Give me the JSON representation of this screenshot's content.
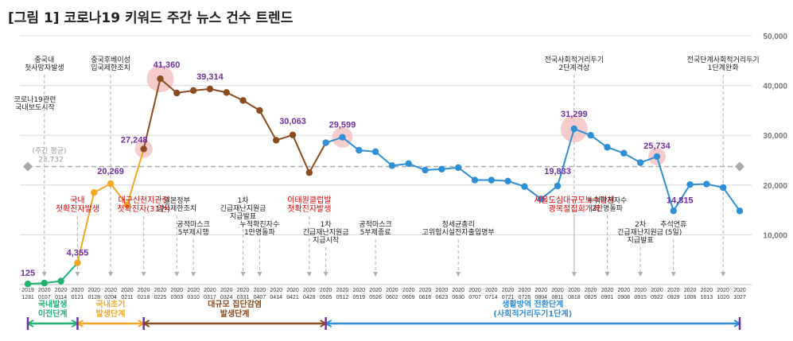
{
  "chart_data": {
    "type": "line",
    "title": "[그림 1] 코로나19 키워드 주간 뉴스 건수 트렌드",
    "ylim": [
      0,
      50000
    ],
    "yticks": [
      "10,000",
      "20,000",
      "30,000",
      "40,000",
      "50,000"
    ],
    "ytick_values": [
      10000,
      20000,
      30000,
      40000,
      50000
    ],
    "grid": true,
    "x_year": [
      "2019",
      "2020",
      "2020",
      "2020",
      "2020",
      "2020",
      "2020",
      "2020",
      "2020",
      "2020",
      "2020",
      "2020",
      "2020",
      "2020",
      "2020",
      "2020",
      "2020",
      "2020",
      "2020",
      "2020",
      "2020",
      "2020",
      "2020",
      "2020",
      "2020",
      "2020",
      "2020",
      "2020",
      "2020",
      "2020",
      "2020",
      "2020",
      "2020",
      "2020",
      "2020",
      "2020",
      "2020",
      "2020",
      "2020",
      "2020",
      "2020",
      "2020",
      "2020",
      "2020",
      "2020"
    ],
    "x": [
      "1231",
      "0107",
      "0114",
      "0121",
      "0128",
      "0204",
      "0211",
      "0218",
      "0225",
      "0303",
      "0310",
      "0317",
      "0324",
      "0331",
      "0407",
      "0414",
      "0421",
      "0428",
      "0505",
      "0512",
      "0519",
      "0526",
      "0602",
      "0609",
      "0616",
      "0623",
      "0630",
      "0707",
      "0714",
      "0721",
      "0728",
      "0804",
      "0811",
      "0818",
      "0825",
      "0901",
      "0908",
      "0915",
      "0922",
      "0929",
      "1006",
      "1013",
      "1020",
      "1027"
    ],
    "values": [
      125,
      300,
      700,
      4355,
      18500,
      20269,
      16000,
      27248,
      41360,
      38500,
      39000,
      39314,
      38600,
      37000,
      35000,
      29000,
      30063,
      22500,
      28500,
      29599,
      27000,
      26700,
      23900,
      24300,
      23000,
      23200,
      23500,
      21000,
      21000,
      20800,
      19700,
      17200,
      19833,
      31299,
      30000,
      27600,
      26400,
      24500,
      25734,
      14815,
      20100,
      20200,
      19500,
      14800
    ],
    "value_labels": {
      "0": "125",
      "3": "4,355",
      "5": "20,269",
      "7": "27,248",
      "8": "41,360",
      "11": "39,314",
      "16": "30,063",
      "19": "29,599",
      "32": "19,833",
      "33": "31,299",
      "38": "25,734",
      "39": "14,815"
    },
    "highlight_indices": [
      7,
      8,
      19,
      33,
      38
    ],
    "segments": [
      {
        "from": 0,
        "to": 3,
        "color": "#1fb371"
      },
      {
        "from": 3,
        "to": 7,
        "color": "#f5a623"
      },
      {
        "from": 7,
        "to": 18,
        "color": "#8b4b1e"
      },
      {
        "from": 18,
        "to": 43,
        "color": "#2e8fd6"
      }
    ],
    "average": {
      "value": 23732,
      "label1": "(주간 평균)",
      "label2": "23,732"
    },
    "phases": [
      {
        "name": "국내발생\n이전단계",
        "from": 0,
        "to": 3,
        "color": "#1fb371"
      },
      {
        "name": "국내초기\n발생단계",
        "from": 3,
        "to": 7,
        "color": "#f5a623"
      },
      {
        "name": "대규모 집단감염\n발생단계",
        "from": 7,
        "to": 18,
        "color": "#8b4b1e"
      },
      {
        "name": "생활방역 전환단계\n(사회적거리두기1단계)",
        "from": 18,
        "to": 43,
        "color": "#2e8fd6"
      }
    ],
    "annotations": [
      {
        "idx": 1,
        "text": "중국내\n첫사망자발생",
        "red": false,
        "pos": "top"
      },
      {
        "idx": 0,
        "text": "코로나19관련\n국내보도시작",
        "red": false,
        "pos": "topleft"
      },
      {
        "idx": 3,
        "text": "국내\n첫확진자발생",
        "red": true,
        "pos": "mid"
      },
      {
        "idx": 5,
        "text": "중국후베이성\n입국제한조치",
        "red": false,
        "pos": "top"
      },
      {
        "idx": 7,
        "text": "대구신천지관련\n첫확진자(31번)",
        "red": true,
        "pos": "mid"
      },
      {
        "idx": 9,
        "text": "일본정부\n입국제한조치",
        "red": false,
        "pos": "mid"
      },
      {
        "idx": 10,
        "text": "공적마스크\n5부제시행",
        "red": false,
        "pos": "low"
      },
      {
        "idx": 13,
        "text": "1차\n긴급재난지원금\n지급발표",
        "red": false,
        "pos": "mid"
      },
      {
        "idx": 14,
        "text": "누적확진자수\n1만명돌파",
        "red": false,
        "pos": "low"
      },
      {
        "idx": 17,
        "text": "이태원클럽발\n첫확진자발생",
        "red": true,
        "pos": "mid"
      },
      {
        "idx": 18,
        "text": "1차\n긴급재난지원금\n지급시작",
        "red": false,
        "pos": "low"
      },
      {
        "idx": 21,
        "text": "공적마스크\n5부제종료",
        "red": false,
        "pos": "low"
      },
      {
        "idx": 26,
        "text": "정세균총리\n고위험시설전자출입명부",
        "red": false,
        "pos": "low"
      },
      {
        "idx": 33,
        "text": "전국사회적거리두기\n2단계격상",
        "red": false,
        "pos": "top"
      },
      {
        "idx": 33,
        "text": "서울도심대규모보수단체\n광복절집회개최",
        "red": true,
        "pos": "mid"
      },
      {
        "idx": 35,
        "text": "누적확진자수\n2만명돌파",
        "red": false,
        "pos": "mid"
      },
      {
        "idx": 37,
        "text": "2차\n긴급재난지원금\n지급발표",
        "red": false,
        "pos": "low"
      },
      {
        "idx": 39,
        "text": "추석연휴\n(5일)",
        "red": false,
        "pos": "low"
      },
      {
        "idx": 42,
        "text": "전국단계사회적거리두기\n1단계완화",
        "red": false,
        "pos": "top"
      }
    ]
  }
}
